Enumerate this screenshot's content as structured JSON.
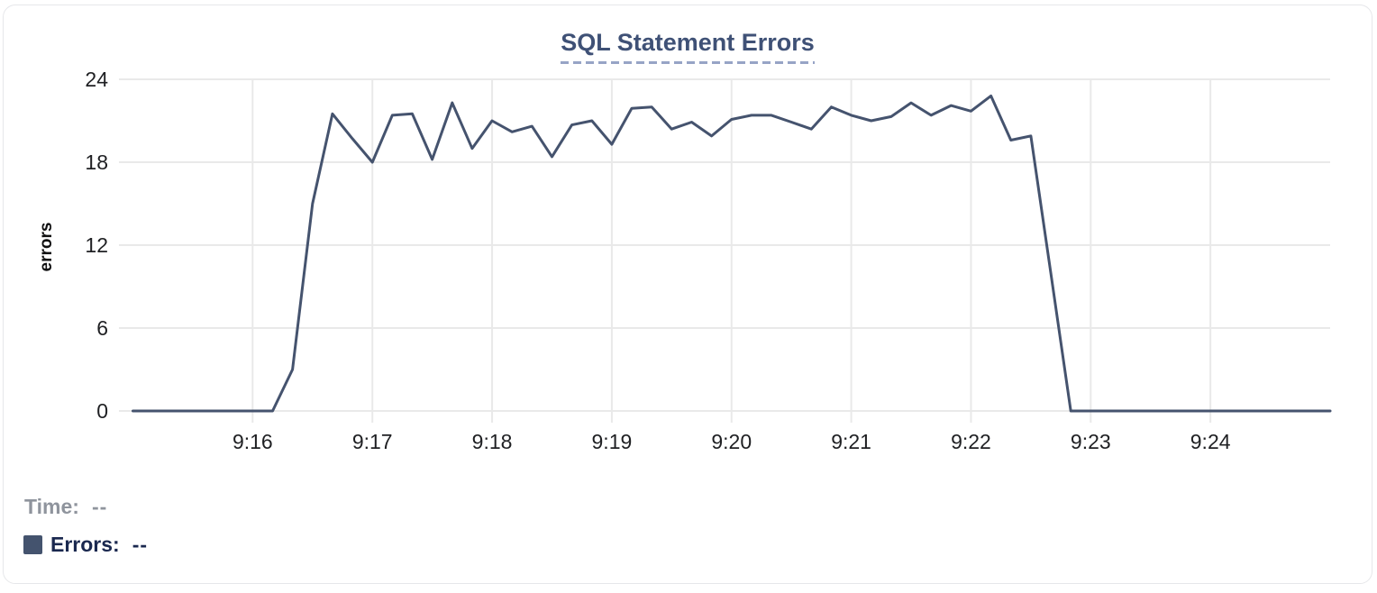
{
  "chart_data": {
    "type": "line",
    "title": "SQL Statement Errors",
    "ylabel": "errors",
    "xlabel": "",
    "y_ticks": [
      0,
      6,
      12,
      18,
      24
    ],
    "ylim": [
      0,
      24
    ],
    "x_tick_labels": [
      "9:16",
      "9:17",
      "9:18",
      "9:19",
      "9:20",
      "9:21",
      "9:22",
      "9:23",
      "9:24"
    ],
    "xlim": [
      "9:14:53",
      "9:25:00"
    ],
    "grid": true,
    "legend_position": "none",
    "line_color": "#45536e",
    "gridline_color": "#e9e9e9",
    "tick_label_color": "#1f2023",
    "series": [
      {
        "name": "Errors",
        "points": [
          [
            "9:15:00",
            0
          ],
          [
            "9:15:10",
            0
          ],
          [
            "9:15:20",
            0
          ],
          [
            "9:15:30",
            0
          ],
          [
            "9:15:40",
            0
          ],
          [
            "9:15:50",
            0
          ],
          [
            "9:16:00",
            0
          ],
          [
            "9:16:10",
            0
          ],
          [
            "9:16:20",
            3
          ],
          [
            "9:16:30",
            15
          ],
          [
            "9:16:40",
            21.5
          ],
          [
            "9:16:50",
            19.7
          ],
          [
            "9:17:00",
            18
          ],
          [
            "9:17:10",
            21.4
          ],
          [
            "9:17:20",
            21.5
          ],
          [
            "9:17:30",
            18.2
          ],
          [
            "9:17:40",
            22.3
          ],
          [
            "9:17:50",
            19
          ],
          [
            "9:18:00",
            21
          ],
          [
            "9:18:10",
            20.2
          ],
          [
            "9:18:20",
            20.6
          ],
          [
            "9:18:30",
            18.4
          ],
          [
            "9:18:40",
            20.7
          ],
          [
            "9:18:50",
            21
          ],
          [
            "9:19:00",
            19.3
          ],
          [
            "9:19:10",
            21.9
          ],
          [
            "9:19:20",
            22
          ],
          [
            "9:19:30",
            20.4
          ],
          [
            "9:19:40",
            20.9
          ],
          [
            "9:19:50",
            19.9
          ],
          [
            "9:20:00",
            21.1
          ],
          [
            "9:20:10",
            21.4
          ],
          [
            "9:20:20",
            21.4
          ],
          [
            "9:20:30",
            20.9
          ],
          [
            "9:20:40",
            20.4
          ],
          [
            "9:20:50",
            22
          ],
          [
            "9:21:00",
            21.4
          ],
          [
            "9:21:10",
            21
          ],
          [
            "9:21:20",
            21.3
          ],
          [
            "9:21:30",
            22.3
          ],
          [
            "9:21:40",
            21.4
          ],
          [
            "9:21:50",
            22.1
          ],
          [
            "9:22:00",
            21.7
          ],
          [
            "9:22:10",
            22.8
          ],
          [
            "9:22:20",
            19.6
          ],
          [
            "9:22:30",
            19.9
          ],
          [
            "9:22:40",
            10
          ],
          [
            "9:22:50",
            0
          ],
          [
            "9:23:00",
            0
          ],
          [
            "9:23:10",
            0
          ],
          [
            "9:23:20",
            0
          ],
          [
            "9:23:30",
            0
          ],
          [
            "9:23:40",
            0
          ],
          [
            "9:23:50",
            0
          ],
          [
            "9:24:00",
            0
          ],
          [
            "9:24:10",
            0
          ],
          [
            "9:24:20",
            0
          ],
          [
            "9:24:30",
            0
          ],
          [
            "9:24:40",
            0
          ],
          [
            "9:24:50",
            0
          ],
          [
            "9:25:00",
            0
          ]
        ]
      }
    ]
  },
  "readout": {
    "time_label": "Time:",
    "time_value": "--",
    "errors_label": "Errors:",
    "errors_value": "--",
    "swatch_color": "#44536e"
  },
  "colors": {
    "title": "#3f5176",
    "title_underline": "#97a4c6",
    "card_border": "#e6e7ea",
    "time_text": "#8f949d",
    "errors_text": "#1a284f"
  }
}
